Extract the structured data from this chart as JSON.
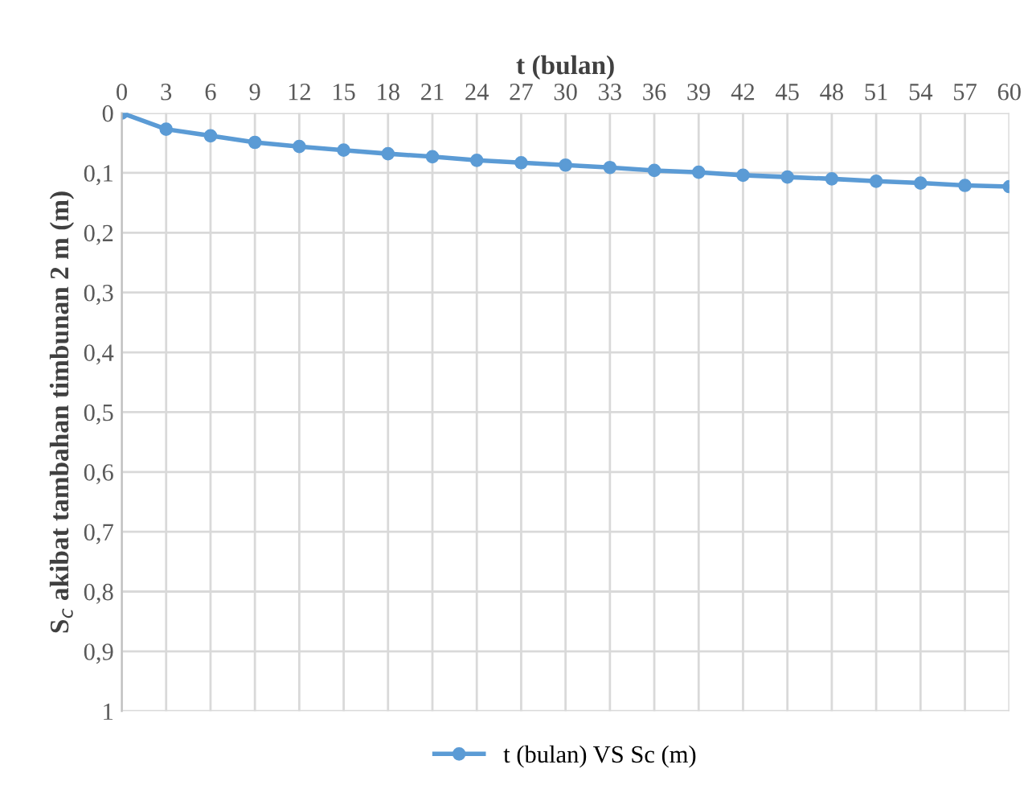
{
  "chart_data": {
    "type": "line",
    "xlabel": "t (bulan)",
    "ylabel": "S$_{c}$ akibat tambahan timbunan 2 m (m)",
    "x": [
      0,
      3,
      6,
      9,
      12,
      15,
      18,
      21,
      24,
      27,
      30,
      33,
      36,
      39,
      42,
      45,
      48,
      51,
      54,
      57,
      60
    ],
    "series": [
      {
        "name": "t (bulan) VS Sc (m)",
        "color": "#5b9bd5",
        "values": [
          0,
          0.027,
          0.038,
          0.049,
          0.056,
          0.062,
          0.068,
          0.073,
          0.079,
          0.083,
          0.087,
          0.091,
          0.096,
          0.099,
          0.104,
          0.107,
          0.11,
          0.114,
          0.117,
          0.121,
          0.123
        ]
      }
    ],
    "xlim": [
      0,
      60
    ],
    "xticks": [
      0,
      3,
      6,
      9,
      12,
      15,
      18,
      21,
      24,
      27,
      30,
      33,
      36,
      39,
      42,
      45,
      48,
      51,
      54,
      57,
      60
    ],
    "ylim": [
      1,
      0
    ],
    "yticks": [
      {
        "value": 0,
        "label": "0"
      },
      {
        "value": 0.1,
        "label": "0,1"
      },
      {
        "value": 0.2,
        "label": "0,2"
      },
      {
        "value": 0.3,
        "label": "0,3"
      },
      {
        "value": 0.4,
        "label": "0,4"
      },
      {
        "value": 0.5,
        "label": "0,5"
      },
      {
        "value": 0.6,
        "label": "0,6"
      },
      {
        "value": 0.7,
        "label": "0,7"
      },
      {
        "value": 0.8,
        "label": "0,8"
      },
      {
        "value": 0.9,
        "label": "0,9"
      },
      {
        "value": 1,
        "label": "1"
      }
    ],
    "grid": true,
    "legend": "bottom",
    "marker": "circle",
    "line_style": "solid"
  }
}
